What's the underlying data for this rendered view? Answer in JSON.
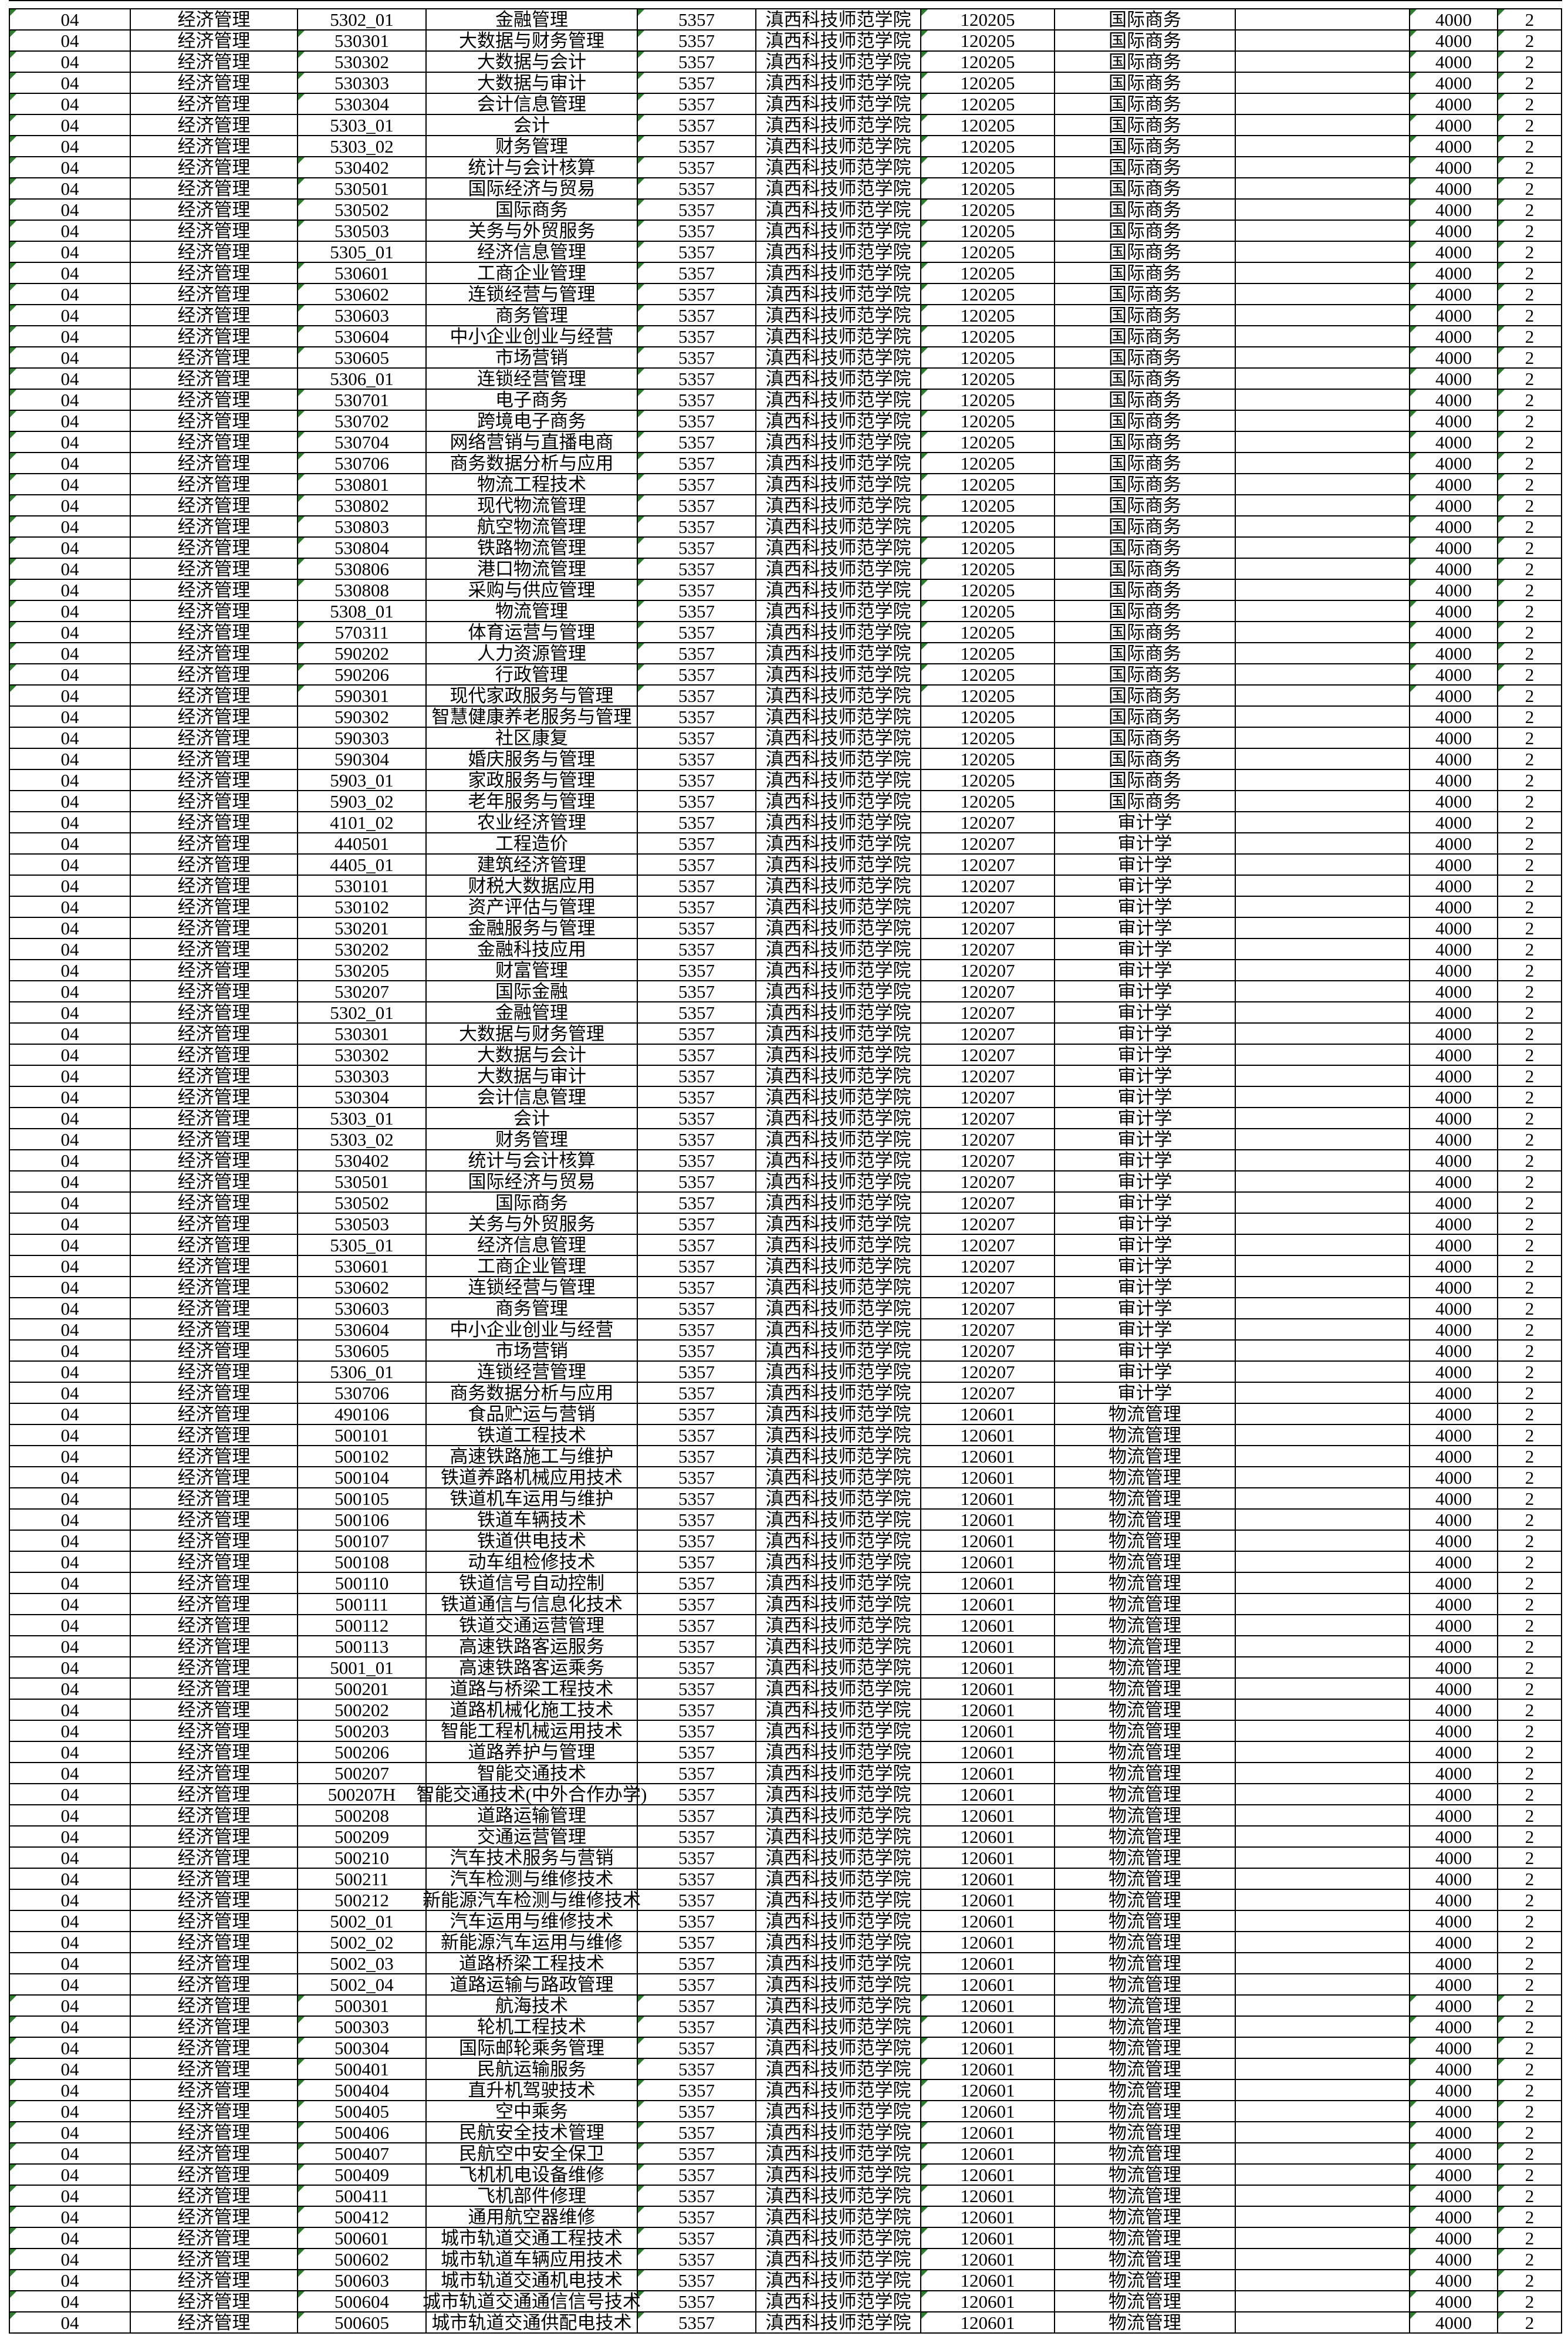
{
  "sheet": {
    "description_visible_region": "excel-like grid, no headers or chrome visible",
    "green_marker_color": "#2e7d2e",
    "green_marker_columns": [
      0,
      2,
      4,
      6,
      9,
      10
    ],
    "green_rows": [
      [
        1,
        33
      ],
      [
        95,
        110
      ]
    ],
    "constants": {
      "dept_code": "04",
      "dept_name": "经济管理",
      "college_code": "5357",
      "college_name": "滇西科技师范学院",
      "blank": "",
      "tuition": "4000",
      "years": "2"
    },
    "sections": [
      {
        "ug_code": "120205",
        "ug_major": "国际商务",
        "rows": [
          [
            "5302_01",
            "金融管理"
          ],
          [
            "530301",
            "大数据与财务管理"
          ],
          [
            "530302",
            "大数据与会计"
          ],
          [
            "530303",
            "大数据与审计"
          ],
          [
            "530304",
            "会计信息管理"
          ],
          [
            "5303_01",
            "会计"
          ],
          [
            "5303_02",
            "财务管理"
          ],
          [
            "530402",
            "统计与会计核算"
          ],
          [
            "530501",
            "国际经济与贸易"
          ],
          [
            "530502",
            "国际商务"
          ],
          [
            "530503",
            "关务与外贸服务"
          ],
          [
            "5305_01",
            "经济信息管理"
          ],
          [
            "530601",
            "工商企业管理"
          ],
          [
            "530602",
            "连锁经营与管理"
          ],
          [
            "530603",
            "商务管理"
          ],
          [
            "530604",
            "中小企业创业与经营"
          ],
          [
            "530605",
            "市场营销"
          ],
          [
            "5306_01",
            "连锁经营管理"
          ],
          [
            "530701",
            "电子商务"
          ],
          [
            "530702",
            "跨境电子商务"
          ],
          [
            "530704",
            "网络营销与直播电商"
          ],
          [
            "530706",
            "商务数据分析与应用"
          ],
          [
            "530801",
            "物流工程技术"
          ],
          [
            "530802",
            "现代物流管理"
          ],
          [
            "530803",
            "航空物流管理"
          ],
          [
            "530804",
            "铁路物流管理"
          ],
          [
            "530806",
            "港口物流管理"
          ],
          [
            "530808",
            "采购与供应管理"
          ],
          [
            "5308_01",
            "物流管理"
          ],
          [
            "570311",
            "体育运营与管理"
          ],
          [
            "590202",
            "人力资源管理"
          ],
          [
            "590206",
            "行政管理"
          ],
          [
            "590301",
            "现代家政服务与管理"
          ],
          [
            "590302",
            "智慧健康养老服务与管理"
          ],
          [
            "590303",
            "社区康复"
          ],
          [
            "590304",
            "婚庆服务与管理"
          ],
          [
            "5903_01",
            "家政服务与管理"
          ],
          [
            "5903_02",
            "老年服务与管理"
          ]
        ]
      },
      {
        "ug_code": "120207",
        "ug_major": "审计学",
        "rows": [
          [
            "4101_02",
            "农业经济管理"
          ],
          [
            "440501",
            "工程造价"
          ],
          [
            "4405_01",
            "建筑经济管理"
          ],
          [
            "530101",
            "财税大数据应用"
          ],
          [
            "530102",
            "资产评估与管理"
          ],
          [
            "530201",
            "金融服务与管理"
          ],
          [
            "530202",
            "金融科技应用"
          ],
          [
            "530205",
            "财富管理"
          ],
          [
            "530207",
            "国际金融"
          ],
          [
            "5302_01",
            "金融管理"
          ],
          [
            "530301",
            "大数据与财务管理"
          ],
          [
            "530302",
            "大数据与会计"
          ],
          [
            "530303",
            "大数据与审计"
          ],
          [
            "530304",
            "会计信息管理"
          ],
          [
            "5303_01",
            "会计"
          ],
          [
            "5303_02",
            "财务管理"
          ],
          [
            "530402",
            "统计与会计核算"
          ],
          [
            "530501",
            "国际经济与贸易"
          ],
          [
            "530502",
            "国际商务"
          ],
          [
            "530503",
            "关务与外贸服务"
          ],
          [
            "5305_01",
            "经济信息管理"
          ],
          [
            "530601",
            "工商企业管理"
          ],
          [
            "530602",
            "连锁经营与管理"
          ],
          [
            "530603",
            "商务管理"
          ],
          [
            "530604",
            "中小企业创业与经营"
          ],
          [
            "530605",
            "市场营销"
          ],
          [
            "5306_01",
            "连锁经营管理"
          ],
          [
            "530706",
            "商务数据分析与应用"
          ]
        ]
      },
      {
        "ug_code": "120601",
        "ug_major": "物流管理",
        "rows": [
          [
            "490106",
            "食品贮运与营销"
          ],
          [
            "500101",
            "铁道工程技术"
          ],
          [
            "500102",
            "高速铁路施工与维护"
          ],
          [
            "500104",
            "铁道养路机械应用技术"
          ],
          [
            "500105",
            "铁道机车运用与维护"
          ],
          [
            "500106",
            "铁道车辆技术"
          ],
          [
            "500107",
            "铁道供电技术"
          ],
          [
            "500108",
            "动车组检修技术"
          ],
          [
            "500110",
            "铁道信号自动控制"
          ],
          [
            "500111",
            "铁道通信与信息化技术"
          ],
          [
            "500112",
            "铁道交通运营管理"
          ],
          [
            "500113",
            "高速铁路客运服务"
          ],
          [
            "5001_01",
            "高速铁路客运乘务"
          ],
          [
            "500201",
            "道路与桥梁工程技术"
          ],
          [
            "500202",
            "道路机械化施工技术"
          ],
          [
            "500203",
            "智能工程机械运用技术"
          ],
          [
            "500206",
            "道路养护与管理"
          ],
          [
            "500207",
            "智能交通技术"
          ],
          [
            "500207H",
            "智能交通技术(中外合作办学)"
          ],
          [
            "500208",
            "道路运输管理"
          ],
          [
            "500209",
            "交通运营管理"
          ],
          [
            "500210",
            "汽车技术服务与营销"
          ],
          [
            "500211",
            "汽车检测与维修技术"
          ],
          [
            "500212",
            "新能源汽车检测与维修技术"
          ],
          [
            "5002_01",
            "汽车运用与维修技术"
          ],
          [
            "5002_02",
            "新能源汽车运用与维修"
          ],
          [
            "5002_03",
            "道路桥梁工程技术"
          ],
          [
            "5002_04",
            "道路运输与路政管理"
          ],
          [
            "500301",
            "航海技术"
          ],
          [
            "500303",
            "轮机工程技术"
          ],
          [
            "500304",
            "国际邮轮乘务管理"
          ],
          [
            "500401",
            "民航运输服务"
          ],
          [
            "500404",
            "直升机驾驶技术"
          ],
          [
            "500405",
            "空中乘务"
          ],
          [
            "500406",
            "民航安全技术管理"
          ],
          [
            "500407",
            "民航空中安全保卫"
          ],
          [
            "500409",
            "飞机机电设备维修"
          ],
          [
            "500411",
            "飞机部件修理"
          ],
          [
            "500412",
            "通用航空器维修"
          ],
          [
            "500601",
            "城市轨道交通工程技术"
          ],
          [
            "500602",
            "城市轨道车辆应用技术"
          ],
          [
            "500603",
            "城市轨道交通机电技术"
          ],
          [
            "500604",
            "城市轨道交通通信信号技术"
          ],
          [
            "500605",
            "城市轨道交通供配电技术"
          ]
        ]
      }
    ]
  }
}
